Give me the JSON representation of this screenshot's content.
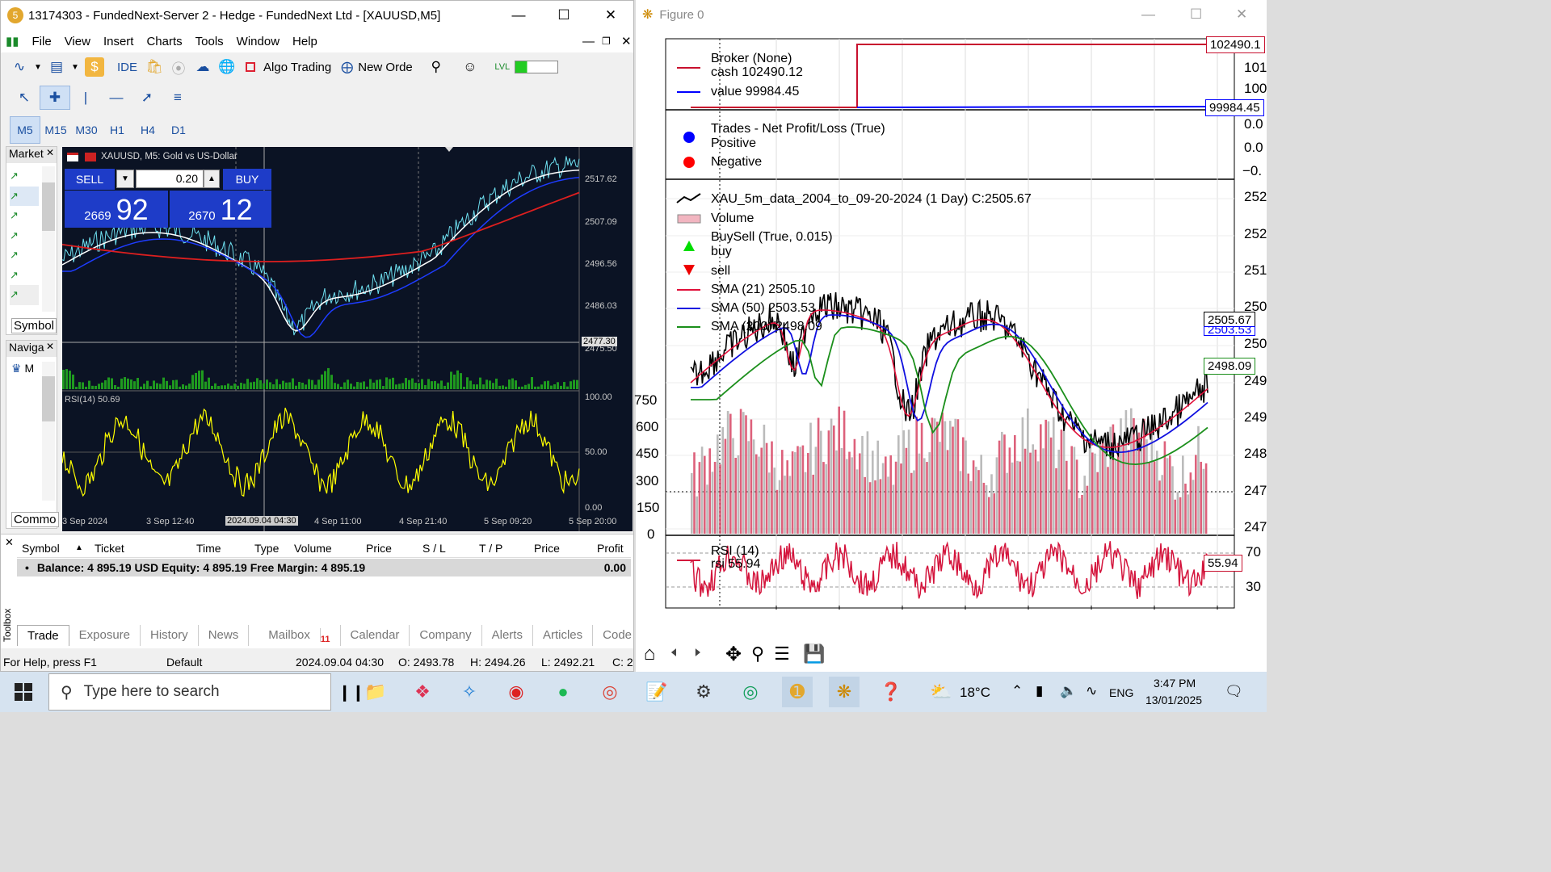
{
  "mt5": {
    "title": "13174303 - FundedNext-Server 2 - Hedge - FundedNext Ltd - [XAUUSD,M5]",
    "menu": [
      "File",
      "View",
      "Insert",
      "Charts",
      "Tools",
      "Window",
      "Help"
    ],
    "toolbar": {
      "ide": "IDE",
      "algo": "Algo Trading",
      "new_order": "New Orde"
    },
    "timeframes": [
      "M5",
      "M15",
      "M30",
      "H1",
      "H4",
      "D1"
    ],
    "market_watch": "Market",
    "symbol_tab": "Symbol",
    "navigator": "Naviga",
    "nav_item": "M",
    "common_tab": "Commo",
    "chart": {
      "header": "XAUUSD, M5:  Gold vs US-Dollar",
      "sell_label": "SELL",
      "buy_label": "BUY",
      "lot": "0.20",
      "sell_big": "2669",
      "sell_small": "92",
      "buy_big": "2670",
      "buy_small": "12",
      "price_labels": [
        "2517.62",
        "2507.09",
        "2496.56",
        "2486.03",
        "2475.50"
      ],
      "price_marker": "2477.30",
      "rsi_label": "RSI(14) 50.69",
      "rsi_levels": [
        "100.00",
        "50.00",
        "0.00"
      ],
      "time_labels": [
        "3 Sep 2024",
        "3 Sep 12:40",
        "2024.09.04 04:30",
        "4 Sep 11:00",
        "4 Sep 21:40",
        "5 Sep 09:20",
        "5 Sep 20:00"
      ]
    },
    "trade_columns": [
      "Symbol",
      "Ticket",
      "Time",
      "Type",
      "Volume",
      "Price",
      "S / L",
      "T / P",
      "Price",
      "Profit"
    ],
    "balance_row": "Balance: 4 895.19 USD  Equity: 4 895.19  Free Margin: 4 895.19",
    "balance_profit": "0.00",
    "toolbox_label": "Toolbox",
    "tabs": [
      "Trade",
      "Exposure",
      "History",
      "News",
      "Mailbox",
      "Calendar",
      "Company",
      "Alerts",
      "Articles",
      "Code Base"
    ],
    "mailbox_count": "11",
    "status": {
      "help": "For Help, press F1",
      "profile": "Default",
      "time": "2024.09.04 04:30",
      "open": "O: 2493.78",
      "high": "H: 2494.26",
      "low": "L: 2492.21",
      "close": "C: 2"
    }
  },
  "figure": {
    "title": "Figure 0",
    "broker": {
      "l1": "Broker (None)",
      "l2": "cash 102490.12",
      "l3": "value 99984.45",
      "cash_badge": "102490.1",
      "value_badge": "99984.45",
      "ticks": [
        "101",
        "100"
      ]
    },
    "trades": {
      "l1": "Trades - Net Profit/Loss (True)",
      "l2": "Positive",
      "l3": "Negative",
      "ticks": [
        "0.0",
        "0.0",
        "−0."
      ]
    },
    "price": {
      "l1": "XAU_5m_data_2004_to_09-20-2024 (1 Day) C:2505.67",
      "l2": "Volume",
      "l3": "BuySell (True, 0.015)",
      "l4": "buy",
      "l5": "sell",
      "l6": "SMA (21) 2505.10",
      "l7": "SMA (50) 2503.53",
      "l8": "SMA (200) 2498.09",
      "badge_close": "2505.67",
      "badge_sma": "2503.53",
      "badge_200": "2498.09",
      "right_ticks": [
        "252",
        "252",
        "251",
        "250",
        "250",
        "249",
        "249",
        "248",
        "247",
        "247"
      ],
      "vol_ticks": [
        "750",
        "600",
        "450",
        "300",
        "150",
        "0"
      ]
    },
    "rsi": {
      "l1": "RSI (14)",
      "l2": "rsi 55.94",
      "badge": "55.94",
      "ticks": [
        "70",
        "30"
      ]
    }
  },
  "taskbar": {
    "search": "Type here to search",
    "weather": "18°C",
    "lang": "ENG",
    "time": "3:47 PM",
    "date": "13/01/2025"
  }
}
